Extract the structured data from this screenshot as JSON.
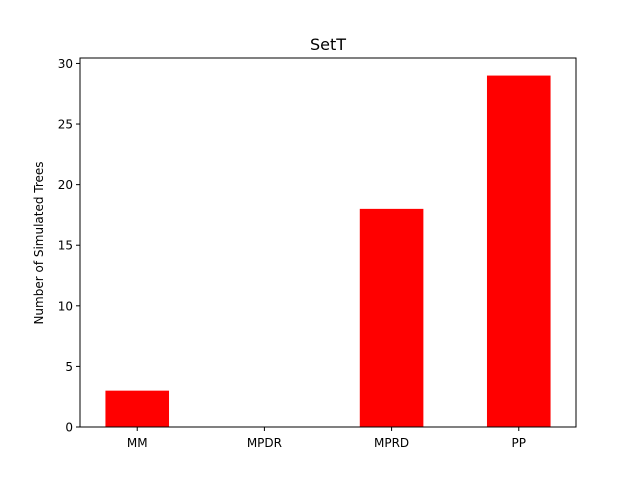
{
  "chart_data": {
    "type": "bar",
    "title": "SetT",
    "xlabel": "",
    "ylabel": "Number of Simulated Trees",
    "categories": [
      "MM",
      "MPDR",
      "MPRD",
      "PP"
    ],
    "values": [
      3,
      0,
      18,
      29
    ],
    "ylim": [
      0,
      30.45
    ],
    "yticks": [
      0,
      5,
      10,
      15,
      20,
      25,
      30
    ],
    "bar_color": "#ff0000",
    "grid": false,
    "legend": "none"
  }
}
